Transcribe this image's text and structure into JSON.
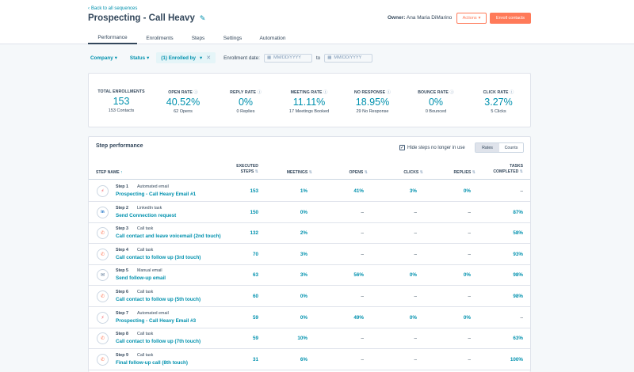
{
  "header": {
    "back_label": "Back to all sequences",
    "title": "Prospecting - Call Heavy",
    "owner_label": "Owner:",
    "owner_name": "Ana Maria DiMarino",
    "actions_label": "Actions",
    "enroll_label": "Enroll contacts"
  },
  "tabs": [
    {
      "label": "Performance",
      "active": true
    },
    {
      "label": "Enrollments",
      "active": false
    },
    {
      "label": "Steps",
      "active": false
    },
    {
      "label": "Settings",
      "active": false
    },
    {
      "label": "Automation",
      "active": false
    }
  ],
  "filters": {
    "company": "Company",
    "status": "Status",
    "enrolled_by": "(1) Enrolled by",
    "enrollment_date_label": "Enrollment date:",
    "date_from_placeholder": "MM/DD/YYYY",
    "to_label": "to",
    "date_to_placeholder": "MM/DD/YYYY"
  },
  "stats": [
    {
      "label": "TOTAL ENROLLMENTS",
      "info": false,
      "value": "153",
      "sub": "153 Contacts"
    },
    {
      "label": "OPEN RATE",
      "info": true,
      "value": "40.52%",
      "sub": "62 Opens"
    },
    {
      "label": "REPLY RATE",
      "info": true,
      "value": "0%",
      "sub": "0 Replies"
    },
    {
      "label": "MEETING RATE",
      "info": true,
      "value": "11.11%",
      "sub": "17 Meetings Booked"
    },
    {
      "label": "NO RESPONSE",
      "info": true,
      "value": "18.95%",
      "sub": "29 No Response"
    },
    {
      "label": "BOUNCE RATE",
      "info": true,
      "value": "0%",
      "sub": "0 Bounced"
    },
    {
      "label": "CLICK RATE",
      "info": true,
      "value": "3.27%",
      "sub": "5 Clicks"
    }
  ],
  "step_performance": {
    "title": "Step performance",
    "hide_steps_label": "Hide steps no longer in use",
    "hide_steps_checked": true,
    "toggle": {
      "rates": "Rates",
      "counts": "Counts",
      "selected": "Rates"
    },
    "columns": {
      "step_name": "STEP NAME",
      "executed_1": "EXECUTED",
      "executed_2": "STEPS",
      "meetings": "MEETINGS",
      "opens": "OPENS",
      "clicks": "CLICKS",
      "replies": "REPLIES",
      "tasks_1": "TASKS",
      "tasks_2": "COMPLETED"
    },
    "rows": [
      {
        "step": "Step 1",
        "type": "Automated email",
        "icon": "email-automated-icon",
        "name": "Prospecting - Call Heavy Email #1",
        "executed": "153",
        "meetings": "1%",
        "opens": "41%",
        "clicks": "3%",
        "replies": "0%",
        "tasks": "–"
      },
      {
        "step": "Step 2",
        "type": "LinkedIn task",
        "icon": "linkedin-icon",
        "name": "Send Connection request",
        "executed": "150",
        "meetings": "0%",
        "opens": "–",
        "clicks": "–",
        "replies": "–",
        "tasks": "87%"
      },
      {
        "step": "Step 3",
        "type": "Call task",
        "icon": "phone-icon",
        "name": "Call contact and leave voicemail (2nd touch)",
        "executed": "132",
        "meetings": "2%",
        "opens": "–",
        "clicks": "–",
        "replies": "–",
        "tasks": "58%"
      },
      {
        "step": "Step 4",
        "type": "Call task",
        "icon": "phone-icon",
        "name": "Call contact to follow up (3rd touch)",
        "executed": "70",
        "meetings": "3%",
        "opens": "–",
        "clicks": "–",
        "replies": "–",
        "tasks": "93%"
      },
      {
        "step": "Step 5",
        "type": "Manual email",
        "icon": "email-manual-icon",
        "name": "Send follow-up email",
        "executed": "63",
        "meetings": "3%",
        "opens": "56%",
        "clicks": "0%",
        "replies": "0%",
        "tasks": "98%"
      },
      {
        "step": "Step 6",
        "type": "Call task",
        "icon": "phone-icon",
        "name": "Call contact to follow up (5th touch)",
        "executed": "60",
        "meetings": "0%",
        "opens": "–",
        "clicks": "–",
        "replies": "–",
        "tasks": "98%"
      },
      {
        "step": "Step 7",
        "type": "Automated email",
        "icon": "email-automated-icon",
        "name": "Prospecting - Call Heavy Email #3",
        "executed": "59",
        "meetings": "0%",
        "opens": "49%",
        "clicks": "0%",
        "replies": "0%",
        "tasks": "–"
      },
      {
        "step": "Step 8",
        "type": "Call task",
        "icon": "phone-icon",
        "name": "Call contact to follow up (7th touch)",
        "executed": "59",
        "meetings": "10%",
        "opens": "–",
        "clicks": "–",
        "replies": "–",
        "tasks": "63%"
      },
      {
        "step": "Step 9",
        "type": "Call task",
        "icon": "phone-icon",
        "name": "Final follow-up call (8th touch)",
        "executed": "31",
        "meetings": "6%",
        "opens": "–",
        "clicks": "–",
        "replies": "–",
        "tasks": "100%"
      }
    ]
  },
  "colors": {
    "accent": "#0091ae",
    "brand": "#ff7a59",
    "text": "#33475b",
    "background": "#f5f8fa"
  }
}
